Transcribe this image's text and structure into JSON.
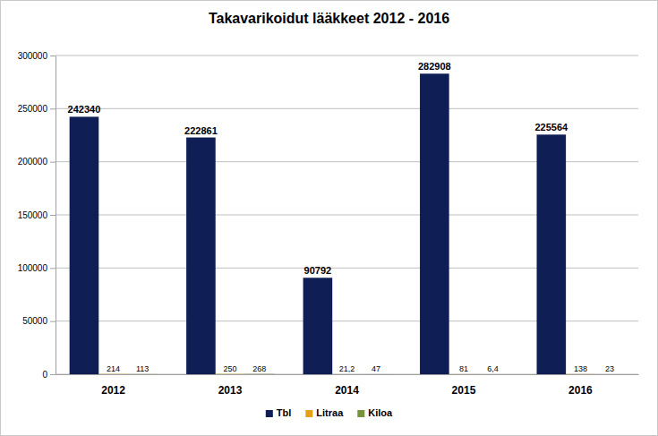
{
  "chart_data": {
    "type": "bar",
    "title": "Takavarikoidut lääkkeet 2012 - 2016",
    "categories": [
      "2012",
      "2013",
      "2014",
      "2015",
      "2016"
    ],
    "series": [
      {
        "name": "Tbl",
        "color": "#0f1f55",
        "values": [
          242340,
          222861,
          90792,
          282908,
          225564
        ]
      },
      {
        "name": "Litraa",
        "color": "#e3a11a",
        "values": [
          214,
          250,
          21.2,
          81,
          138
        ],
        "value_labels": [
          "214",
          "250",
          "21,2",
          "81",
          "138"
        ]
      },
      {
        "name": "Kiloa",
        "color": "#77933c",
        "values": [
          113,
          268,
          47,
          6.4,
          23
        ],
        "value_labels": [
          "113",
          "268",
          "47",
          "6,4",
          "23"
        ]
      }
    ],
    "ylim": [
      0,
      300000
    ],
    "yticks": [
      0,
      50000,
      100000,
      150000,
      200000,
      250000,
      300000
    ],
    "grid": true,
    "legend": "bottom",
    "data_labels": true
  }
}
